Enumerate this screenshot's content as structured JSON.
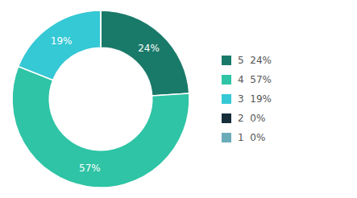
{
  "chart_data": {
    "type": "donut",
    "categories": [
      "5  24%",
      "4  57%",
      "3  19%",
      "2  0%",
      "1  0%"
    ],
    "values": [
      24,
      57,
      19,
      0.0001,
      0.0001
    ],
    "value_labels": [
      "24%",
      "57%",
      "19%",
      null,
      null
    ],
    "colors": [
      "#1a7a6a",
      "#2ec4a5",
      "#35c8d5",
      "#162d3a",
      "#6aabb8"
    ],
    "data_labels": true,
    "legend": "right"
  }
}
